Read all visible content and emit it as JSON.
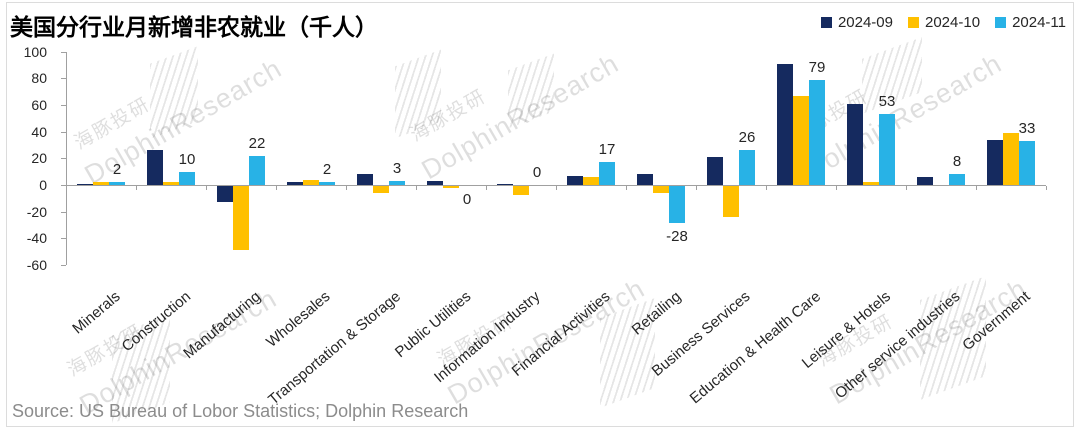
{
  "title": "美国分行业月新增非农就业（千人）",
  "source": "Source: US Bureau of Lobor Statistics; Dolphin Research",
  "watermark": {
    "cn": "海豚投研",
    "en": "DolphinResearch"
  },
  "chart_data": {
    "type": "bar",
    "title": "美国分行业月新增非农就业（千人）",
    "categories": [
      "Minerals",
      "Construction",
      "Manufacturing",
      "Wholesales",
      "Transportation & Storage",
      "Public Utilities",
      "Information Industry",
      "Financial Activities",
      "Retailing",
      "Business Services",
      "Education & Health Care",
      "Leisure & Hotels",
      "Other service industries",
      "Government"
    ],
    "series": [
      {
        "name": "2024-09",
        "color": "#152A5F",
        "values": [
          1,
          26,
          -12,
          2,
          8,
          3,
          1,
          7,
          8,
          21,
          91,
          61,
          6,
          34
        ]
      },
      {
        "name": "2024-10",
        "color": "#FFC000",
        "values": [
          2,
          2,
          -48,
          4,
          -5,
          -1,
          -7,
          6,
          -5,
          -23,
          67,
          2,
          0,
          39
        ]
      },
      {
        "name": "2024-11",
        "color": "#28B2E6",
        "values": [
          2,
          10,
          22,
          2,
          3,
          0,
          0,
          17,
          -28,
          26,
          79,
          53,
          8,
          33
        ],
        "data_labels": [
          "2",
          "10",
          "22",
          "2",
          "3",
          "0",
          "0",
          "17",
          "-28",
          "26",
          "79",
          "53",
          "8",
          "33"
        ],
        "label_below": [
          false,
          false,
          false,
          false,
          false,
          true,
          false,
          false,
          true,
          false,
          false,
          false,
          false,
          false
        ]
      }
    ],
    "ylim": [
      -60,
      100
    ],
    "yticks": [
      100,
      80,
      60,
      40,
      20,
      0,
      -20,
      -40,
      -60
    ],
    "legend_position": "top-right",
    "grid": false
  }
}
